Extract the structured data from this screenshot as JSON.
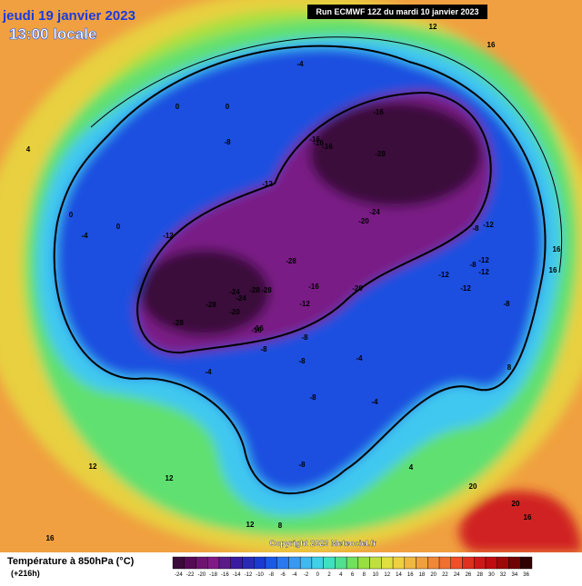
{
  "header": {
    "date": "jeudi 19 janvier 2023",
    "time": "13:00 locale",
    "run": "Run ECMWF 12Z du mardi 10 janvier 2023"
  },
  "map": {
    "contour_labels": [
      -28,
      -28,
      -24,
      -24,
      -28,
      -28,
      -28,
      -20,
      -16,
      -12,
      -16,
      -16,
      -28,
      -12,
      -16,
      -16,
      -20,
      -24,
      -12,
      -12,
      -8,
      -12,
      -8,
      -8,
      -4,
      0,
      0,
      -4,
      0,
      -8,
      -8,
      -8,
      -16,
      -20,
      -12,
      -8,
      -12,
      -8,
      -16,
      -12,
      12,
      12,
      16,
      16,
      16,
      20,
      20,
      16,
      12,
      8,
      12,
      16,
      4,
      0,
      -4,
      -4,
      -8,
      -4,
      4,
      8
    ],
    "copyright": "Copyright 2023 Meteociel.fr"
  },
  "legend": {
    "title": "Température à 850hPa (°C)",
    "lead": "(+216h)",
    "ticks": [
      -24,
      -22,
      -20,
      -18,
      -16,
      -14,
      -12,
      -10,
      -8,
      -6,
      -4,
      -2,
      0,
      2,
      4,
      6,
      8,
      10,
      12,
      14,
      16,
      18,
      20,
      22,
      24,
      26,
      28,
      30,
      32,
      34,
      36
    ],
    "colors": [
      "#3a0a3a",
      "#560a56",
      "#6e1470",
      "#801a86",
      "#5a1a8a",
      "#3a1aa0",
      "#2a2ab8",
      "#1a3ad0",
      "#1a58e8",
      "#2a78f0",
      "#3a98f0",
      "#40b8f0",
      "#40d0e8",
      "#40e0c0",
      "#50e090",
      "#70e060",
      "#98e040",
      "#c0e040",
      "#e0e040",
      "#f0d040",
      "#f0b840",
      "#f0a040",
      "#f08838",
      "#f07030",
      "#f05028",
      "#e03020",
      "#d01818",
      "#c00c10",
      "#a00808",
      "#700404",
      "#300000"
    ]
  }
}
